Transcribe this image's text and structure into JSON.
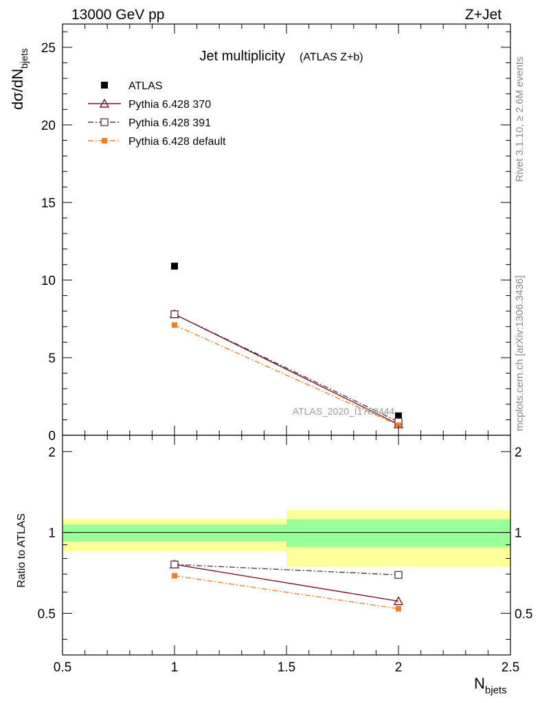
{
  "header": {
    "energy_label": "13000 GeV pp",
    "process_label": "Z+Jet",
    "title": "Jet multiplicity",
    "subtitle": "(ATLAS Z+b)",
    "side_rivet": "Rivet 3.1.10, ≥ 2.6M events",
    "side_mcplots": "mcplots.cern.ch [arXiv:1306.3436]",
    "analysis_watermark": "ATLAS_2020_I1788444"
  },
  "axes": {
    "ylabel_main": "dσ/dN",
    "ylabel_main_sub": "bjets",
    "ylabel_ratio": "Ratio to ATLAS",
    "xlabel": "N",
    "xlabel_sub": "bjets"
  },
  "colors": {
    "atlas": "#000000",
    "p370": "#7a1020",
    "p391": "#5a3a48",
    "pdefault": "#f07f2a",
    "band_inner": "#99ff99",
    "band_outer": "#ffff99"
  },
  "chart_data": [
    {
      "type": "scatter",
      "panel": "main",
      "x": [
        1,
        2
      ],
      "xlim": [
        0.5,
        2.5
      ],
      "ylim": [
        0,
        26.5
      ],
      "yticks": [
        0,
        5,
        10,
        15,
        20,
        25
      ],
      "ytick_labels": [
        "0",
        "5",
        "10",
        "15",
        "20",
        "25"
      ],
      "legend_position": "top-left",
      "series": [
        {
          "name": "ATLAS",
          "key": "atlas",
          "marker": "square-filled",
          "line": "none",
          "values": [
            10.9,
            1.25
          ]
        },
        {
          "name": "Pythia 6.428 370",
          "key": "p370",
          "marker": "triangle-open",
          "line": "solid",
          "values": [
            7.8,
            0.7
          ]
        },
        {
          "name": "Pythia 6.428 391",
          "key": "p391",
          "marker": "square-open",
          "line": "dash-dot",
          "values": [
            7.8,
            0.87
          ]
        },
        {
          "name": "Pythia 6.428 default",
          "key": "pdefault",
          "marker": "square-filled-small",
          "line": "dash-dot",
          "values": [
            7.1,
            0.65
          ]
        }
      ]
    },
    {
      "type": "line",
      "panel": "ratio",
      "x": [
        1,
        2
      ],
      "xlim": [
        0.5,
        2.5
      ],
      "ylim": [
        0.35,
        2.3
      ],
      "yticks": [
        0.5,
        1,
        2
      ],
      "ytick_labels": [
        "0.5",
        "1",
        "2"
      ],
      "xticks": [
        0.5,
        1,
        1.5,
        2,
        2.5
      ],
      "xtick_labels": [
        "0.5",
        "1",
        "1.5",
        "2",
        "2.5"
      ],
      "reference_line": 1,
      "bands": [
        {
          "x_range": [
            0.5,
            1.5
          ],
          "inner": [
            0.925,
            1.07
          ],
          "outer": [
            0.85,
            1.125
          ]
        },
        {
          "x_range": [
            1.5,
            2.5
          ],
          "inner": [
            0.883,
            1.12
          ],
          "outer": [
            0.745,
            1.21
          ]
        }
      ],
      "series": [
        {
          "name": "Pythia 6.428 370",
          "key": "p370",
          "marker": "triangle-open",
          "line": "solid",
          "values": [
            0.76,
            0.555
          ]
        },
        {
          "name": "Pythia 6.428 391",
          "key": "p391",
          "marker": "square-open",
          "line": "dash-dot",
          "values": [
            0.76,
            0.695
          ]
        },
        {
          "name": "Pythia 6.428 default",
          "key": "pdefault",
          "marker": "square-filled-small",
          "line": "dash-dot",
          "values": [
            0.69,
            0.52
          ]
        }
      ]
    }
  ]
}
